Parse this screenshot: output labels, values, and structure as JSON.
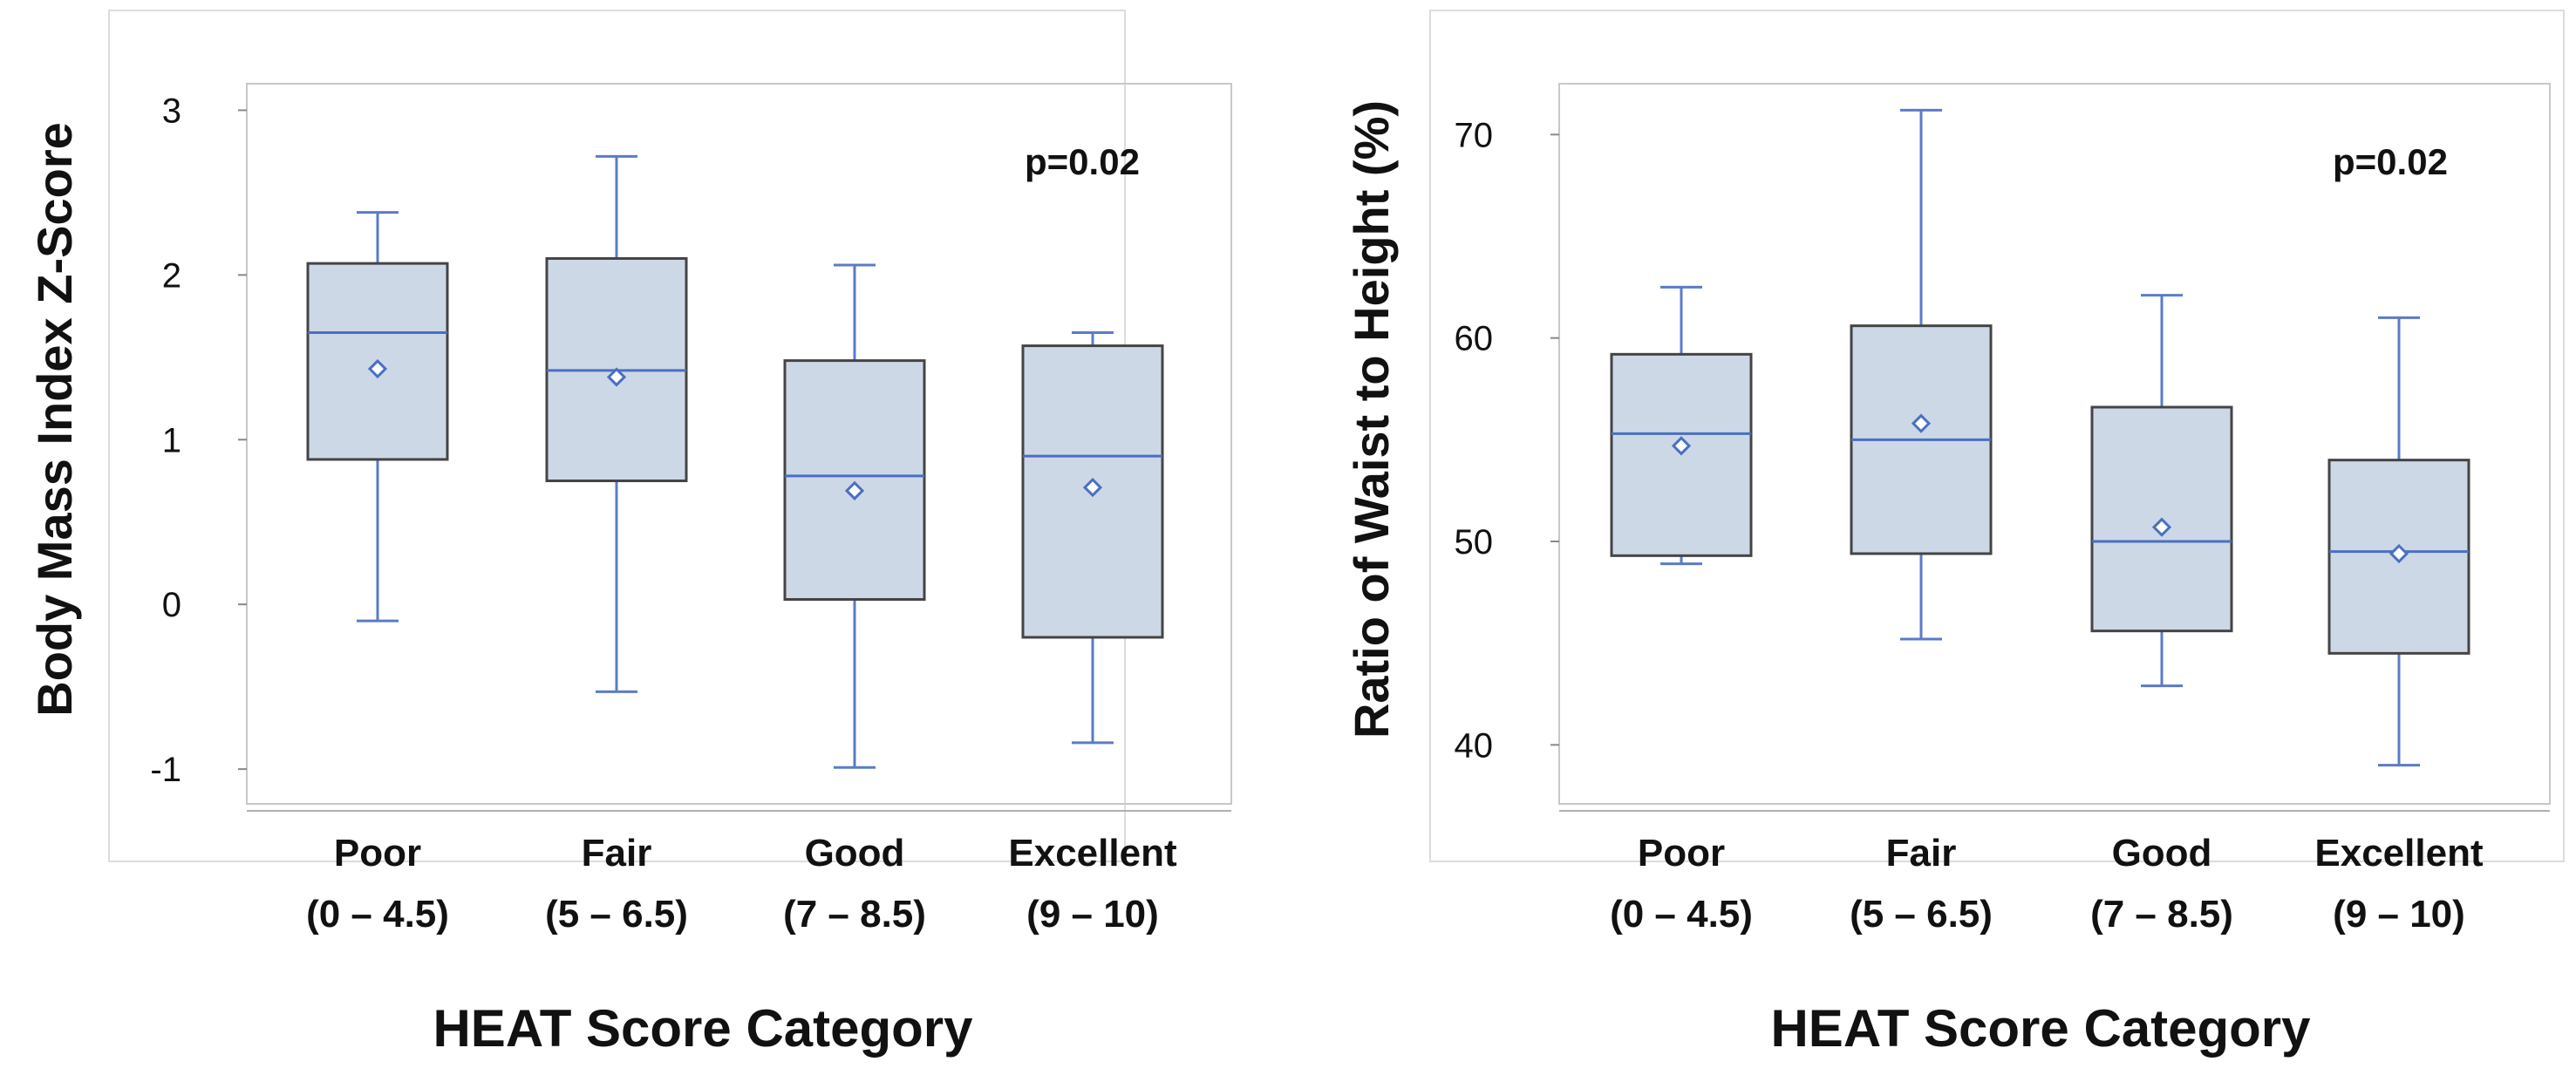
{
  "chart_data": [
    {
      "type": "boxplot",
      "title": "",
      "xlabel": "HEAT Score Category",
      "ylabel": "Body Mass Index Z-Score",
      "ylim": [
        -1.1,
        3.05
      ],
      "yticks": [
        3,
        2,
        1,
        0,
        -1
      ],
      "ytick_labels": [
        "3",
        "2",
        "1",
        "0",
        "-1"
      ],
      "annotation": "p=0.02",
      "categories": [
        {
          "name": "Poor",
          "range": "(0 – 4.5)",
          "min": -0.1,
          "q1": 0.88,
          "median": 1.65,
          "q3": 2.07,
          "max": 2.38,
          "mean": 1.43
        },
        {
          "name": "Fair",
          "range": "(5 – 6.5)",
          "min": -0.53,
          "q1": 0.75,
          "median": 1.42,
          "q3": 2.1,
          "max": 2.72,
          "mean": 1.38
        },
        {
          "name": "Good",
          "range": "(7 – 8.5)",
          "min": -0.99,
          "q1": 0.03,
          "median": 0.78,
          "q3": 1.48,
          "max": 2.06,
          "mean": 0.69
        },
        {
          "name": "Excellent",
          "range": "(9 – 10)",
          "min": -0.84,
          "q1": -0.2,
          "median": 0.9,
          "q3": 1.57,
          "max": 1.65,
          "mean": 0.71
        }
      ]
    },
    {
      "type": "boxplot",
      "title": "",
      "xlabel": "HEAT Score Category",
      "ylabel": "Ratio of Waist to Height (%)",
      "ylim": [
        38,
        72.5
      ],
      "yticks": [
        70,
        60,
        50,
        40
      ],
      "ytick_labels": [
        "70",
        "60",
        "50",
        "40"
      ],
      "annotation": "p=0.02",
      "categories": [
        {
          "name": "Poor",
          "range": "(0 – 4.5)",
          "min": 48.9,
          "q1": 49.3,
          "median": 55.3,
          "q3": 59.2,
          "max": 62.5,
          "mean": 54.7
        },
        {
          "name": "Fair",
          "range": "(5 – 6.5)",
          "min": 45.2,
          "q1": 49.4,
          "median": 55.0,
          "q3": 60.6,
          "max": 71.2,
          "mean": 55.8
        },
        {
          "name": "Good",
          "range": "(7 – 8.5)",
          "min": 42.9,
          "q1": 45.6,
          "median": 50.0,
          "q3": 56.6,
          "max": 62.1,
          "mean": 50.7
        },
        {
          "name": "Excellent",
          "range": "(9 – 10)",
          "min": 39.0,
          "q1": 44.5,
          "median": 49.5,
          "q3": 54.0,
          "max": 61.0,
          "mean": 49.4
        }
      ]
    }
  ],
  "colors": {
    "box_fill": "#cdd8e7",
    "box_stroke": "#444444",
    "whisker": "#5b7bc8",
    "median": "#4a6fc2",
    "mean_marker": "#4a6fc2",
    "frame": "#c8c8c8"
  }
}
